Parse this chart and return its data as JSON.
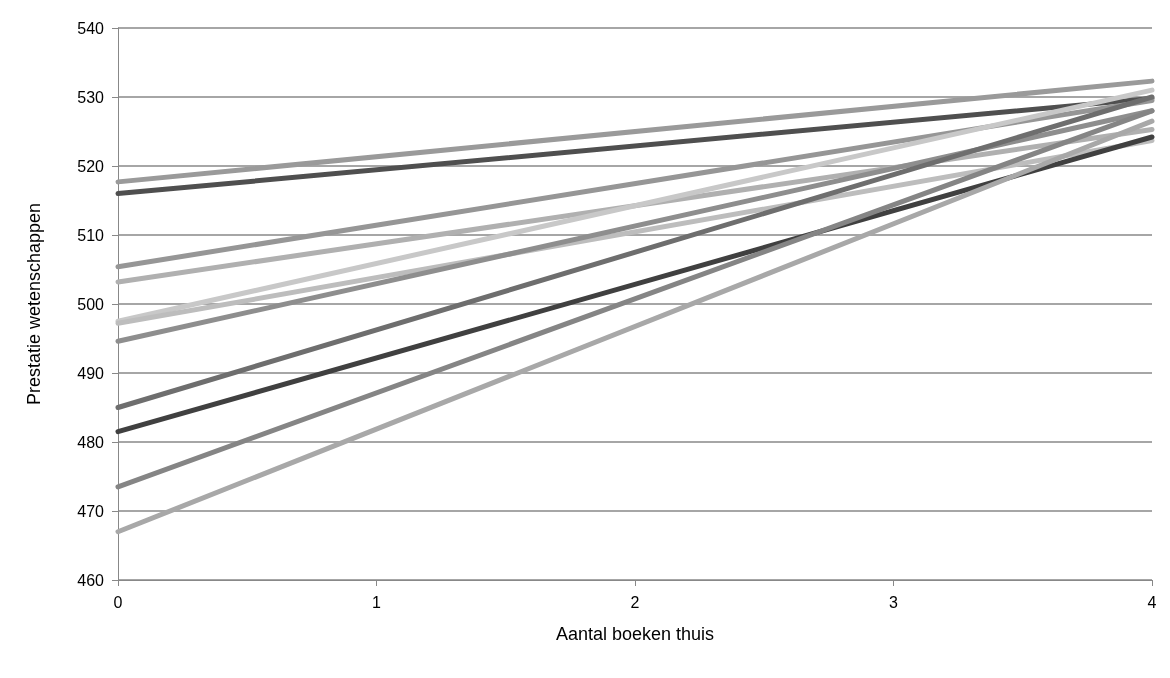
{
  "chart_data": {
    "type": "line",
    "xlabel": "Aantal boeken thuis",
    "ylabel": "Prestatie wetenschappen",
    "x": [
      0,
      4
    ],
    "xlim": [
      0,
      4
    ],
    "xticks": [
      0,
      1,
      2,
      3,
      4
    ],
    "ylim": [
      460,
      540
    ],
    "yticks": [
      460,
      470,
      480,
      490,
      500,
      510,
      520,
      530,
      540
    ],
    "grid": "y",
    "marker": "none",
    "line_style": "solid",
    "series": [
      {
        "color": "#9a9a9a",
        "values": [
          517.7,
          532.3
        ]
      },
      {
        "color": "#4f4f4f",
        "values": [
          516,
          529.8
        ]
      },
      {
        "color": "#969696",
        "values": [
          505.4,
          529.5
        ]
      },
      {
        "color": "#b0b0b0",
        "values": [
          503.2,
          525.3
        ]
      },
      {
        "color": "#c8c8c8",
        "values": [
          497.5,
          531
        ]
      },
      {
        "color": "#bdbdbd",
        "values": [
          497.2,
          523.7
        ]
      },
      {
        "color": "#8e8e8e",
        "values": [
          494.6,
          528
        ]
      },
      {
        "color": "#6e6e6e",
        "values": [
          485,
          530
        ]
      },
      {
        "color": "#404040",
        "values": [
          481.5,
          524.2
        ]
      },
      {
        "color": "#858585",
        "values": [
          473.5,
          528
        ]
      },
      {
        "color": "#a8a8a8",
        "values": [
          467,
          526.5
        ]
      }
    ]
  }
}
